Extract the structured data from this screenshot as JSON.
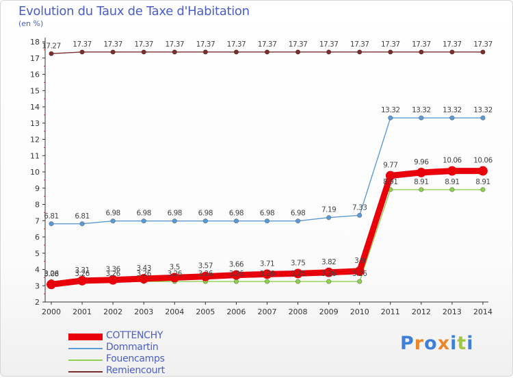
{
  "header": {
    "title": "Evolution du Taux de Taxe d'Habitation",
    "subtitle": "(en %)"
  },
  "brand": {
    "logo_text": "Proxiti"
  },
  "chart_data": {
    "type": "line",
    "x": [
      "2000",
      "2001",
      "2002",
      "2003",
      "2004",
      "2005",
      "2006",
      "2007",
      "2008",
      "2009",
      "2010",
      "2011",
      "2012",
      "2013",
      "2014"
    ],
    "ylim": [
      2,
      18
    ],
    "yticks": [
      2,
      3,
      4,
      5,
      6,
      7,
      8,
      9,
      10,
      11,
      12,
      13,
      14,
      15,
      16,
      17,
      18
    ],
    "grid": false,
    "legend_position": "bottom-left",
    "series": [
      {
        "name": "COTTENCHY",
        "color": "#e8000b",
        "values": [
          3.08,
          3.31,
          3.36,
          3.43,
          3.5,
          3.57,
          3.66,
          3.71,
          3.75,
          3.82,
          3.9,
          9.77,
          9.96,
          10.06,
          10.06
        ],
        "labels": [
          "3.08",
          "3.31",
          "3.36",
          "3.43",
          "3.5",
          "3.57",
          "3.66",
          "3.71",
          "3.75",
          "3.82",
          "3.9",
          "9.77",
          "9.96",
          "10.06",
          "10.06"
        ]
      },
      {
        "name": "Dommartin",
        "color": "#5b9bd5",
        "values": [
          6.81,
          6.81,
          6.98,
          6.98,
          6.98,
          6.98,
          6.98,
          6.98,
          6.98,
          7.19,
          7.33,
          13.32,
          13.32,
          13.32,
          13.32
        ],
        "labels": [
          "6.81",
          "6.81",
          "6.98",
          "6.98",
          "6.98",
          "6.98",
          "6.98",
          "6.98",
          "6.98",
          "7.19",
          "7.33",
          "13.32",
          "13.32",
          "13.32",
          "13.32"
        ]
      },
      {
        "name": "Fouencamps",
        "color": "#8fd14f",
        "values": [
          3.26,
          3.26,
          3.26,
          3.26,
          3.26,
          3.26,
          3.26,
          3.26,
          3.26,
          3.26,
          3.26,
          8.91,
          8.91,
          8.91,
          8.91
        ],
        "labels": [
          "3.26",
          "3.26",
          "3.26",
          "3.26",
          "3.26",
          "3.26",
          "3.26",
          "3.26",
          "3.26",
          "3.26",
          "3.26",
          "8.91",
          "8.91",
          "8.91",
          "8.91"
        ]
      },
      {
        "name": "Remiencourt",
        "color": "#7b2c2c",
        "values": [
          17.27,
          17.37,
          17.37,
          17.37,
          17.37,
          17.37,
          17.37,
          17.37,
          17.37,
          17.37,
          17.37,
          17.37,
          17.37,
          17.37,
          17.37
        ],
        "labels": [
          "17.27",
          "17.37",
          "17.37",
          "17.37",
          "17.37",
          "17.37",
          "17.37",
          "17.37",
          "17.37",
          "17.37",
          "17.37",
          "17.37",
          "17.37",
          "17.37",
          "17.37"
        ]
      }
    ]
  }
}
